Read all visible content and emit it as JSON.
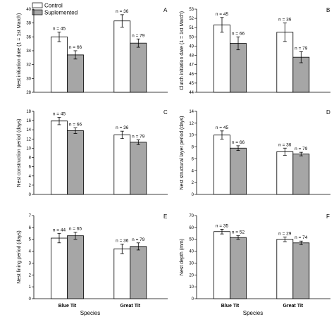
{
  "legend": {
    "items": [
      {
        "label": "Control",
        "color": "#ffffff"
      },
      {
        "label": "Suplemented",
        "color": "#a6a6a6"
      }
    ]
  },
  "x_axis_label": "Species",
  "colors": {
    "control": "#ffffff",
    "supplemented": "#a6a6a6",
    "stroke": "#000000"
  },
  "chart_data": [
    {
      "type": "bar",
      "letter": "A",
      "ylabel": "Nest initiation date (1 = 1st March)",
      "ylim": [
        28,
        40
      ],
      "yticks": [
        28,
        30,
        32,
        34,
        36,
        38,
        40
      ],
      "categories": [
        "Blue Tit",
        "Great Tit"
      ],
      "series": [
        {
          "name": "Control",
          "values": [
            36.0,
            38.3
          ],
          "errors": [
            0.7,
            0.9
          ],
          "n": [
            "n = 45",
            "n = 36"
          ]
        },
        {
          "name": "Suplemented",
          "values": [
            33.4,
            35.1
          ],
          "errors": [
            0.6,
            0.6
          ],
          "n": [
            "n = 66",
            "n = 79"
          ]
        }
      ]
    },
    {
      "type": "bar",
      "letter": "B",
      "ylabel": "Clutch initiation date (1 = 1st March)",
      "ylim": [
        44,
        53
      ],
      "yticks": [
        44,
        45,
        46,
        47,
        48,
        49,
        50,
        51,
        52,
        53
      ],
      "categories": [
        "Blue Tit",
        "Great Tit"
      ],
      "series": [
        {
          "name": "Control",
          "values": [
            51.3,
            50.5
          ],
          "errors": [
            0.8,
            1.0
          ],
          "n": [
            "n = 45",
            "n = 36"
          ]
        },
        {
          "name": "Suplemented",
          "values": [
            49.3,
            47.8
          ],
          "errors": [
            0.7,
            0.6
          ],
          "n": [
            "n = 66",
            "n = 79"
          ]
        }
      ]
    },
    {
      "type": "bar",
      "letter": "C",
      "ylabel": "Nest construction period (days)",
      "ylim": [
        0,
        18
      ],
      "yticks": [
        0,
        2,
        4,
        6,
        8,
        10,
        12,
        14,
        16,
        18
      ],
      "categories": [
        "Blue Tit",
        "Great Tit"
      ],
      "series": [
        {
          "name": "Control",
          "values": [
            15.9,
            12.9
          ],
          "errors": [
            0.8,
            0.8
          ],
          "n": [
            "n = 45",
            "n = 36"
          ]
        },
        {
          "name": "Suplemented",
          "values": [
            13.8,
            11.3
          ],
          "errors": [
            0.6,
            0.5
          ],
          "n": [
            "n = 66",
            "n = 79"
          ]
        }
      ]
    },
    {
      "type": "bar",
      "letter": "D",
      "ylabel": "Nest structural layer period (days)",
      "ylim": [
        0,
        14
      ],
      "yticks": [
        0,
        2,
        4,
        6,
        8,
        10,
        12,
        14
      ],
      "categories": [
        "Blue Tit",
        "Great Tit"
      ],
      "series": [
        {
          "name": "Control",
          "values": [
            10.0,
            7.2
          ],
          "errors": [
            0.7,
            0.6
          ],
          "n": [
            "n = 45",
            "n = 36"
          ]
        },
        {
          "name": "Suplemented",
          "values": [
            7.8,
            6.8
          ],
          "errors": [
            0.4,
            0.3
          ],
          "n": [
            "n = 66",
            "n = 79"
          ]
        }
      ]
    },
    {
      "type": "bar",
      "letter": "E",
      "ylabel": "Nest lining period (days)",
      "ylim": [
        0,
        7
      ],
      "yticks": [
        0,
        1,
        2,
        3,
        4,
        5,
        6,
        7
      ],
      "categories": [
        "Blue Tit",
        "Great Tit"
      ],
      "series": [
        {
          "name": "Control",
          "values": [
            5.1,
            4.2
          ],
          "errors": [
            0.4,
            0.4
          ],
          "n": [
            "n = 44",
            "n = 36"
          ]
        },
        {
          "name": "Suplemented",
          "values": [
            5.3,
            4.4
          ],
          "errors": [
            0.3,
            0.3
          ],
          "n": [
            "n = 65",
            "n = 79"
          ]
        }
      ]
    },
    {
      "type": "bar",
      "letter": "F",
      "ylabel": "Nest depth (mm)",
      "ylim": [
        0,
        70
      ],
      "yticks": [
        0,
        10,
        20,
        30,
        40,
        50,
        60,
        70
      ],
      "categories": [
        "Blue Tit",
        "Great Tit"
      ],
      "series": [
        {
          "name": "Control",
          "values": [
            56.5,
            50.0
          ],
          "errors": [
            2.0,
            2.0
          ],
          "n": [
            "n = 35",
            "n = 29"
          ]
        },
        {
          "name": "Suplemented",
          "values": [
            51.5,
            47.0
          ],
          "errors": [
            1.5,
            1.5
          ],
          "n": [
            "n = 52",
            "n = 74"
          ]
        }
      ]
    }
  ]
}
